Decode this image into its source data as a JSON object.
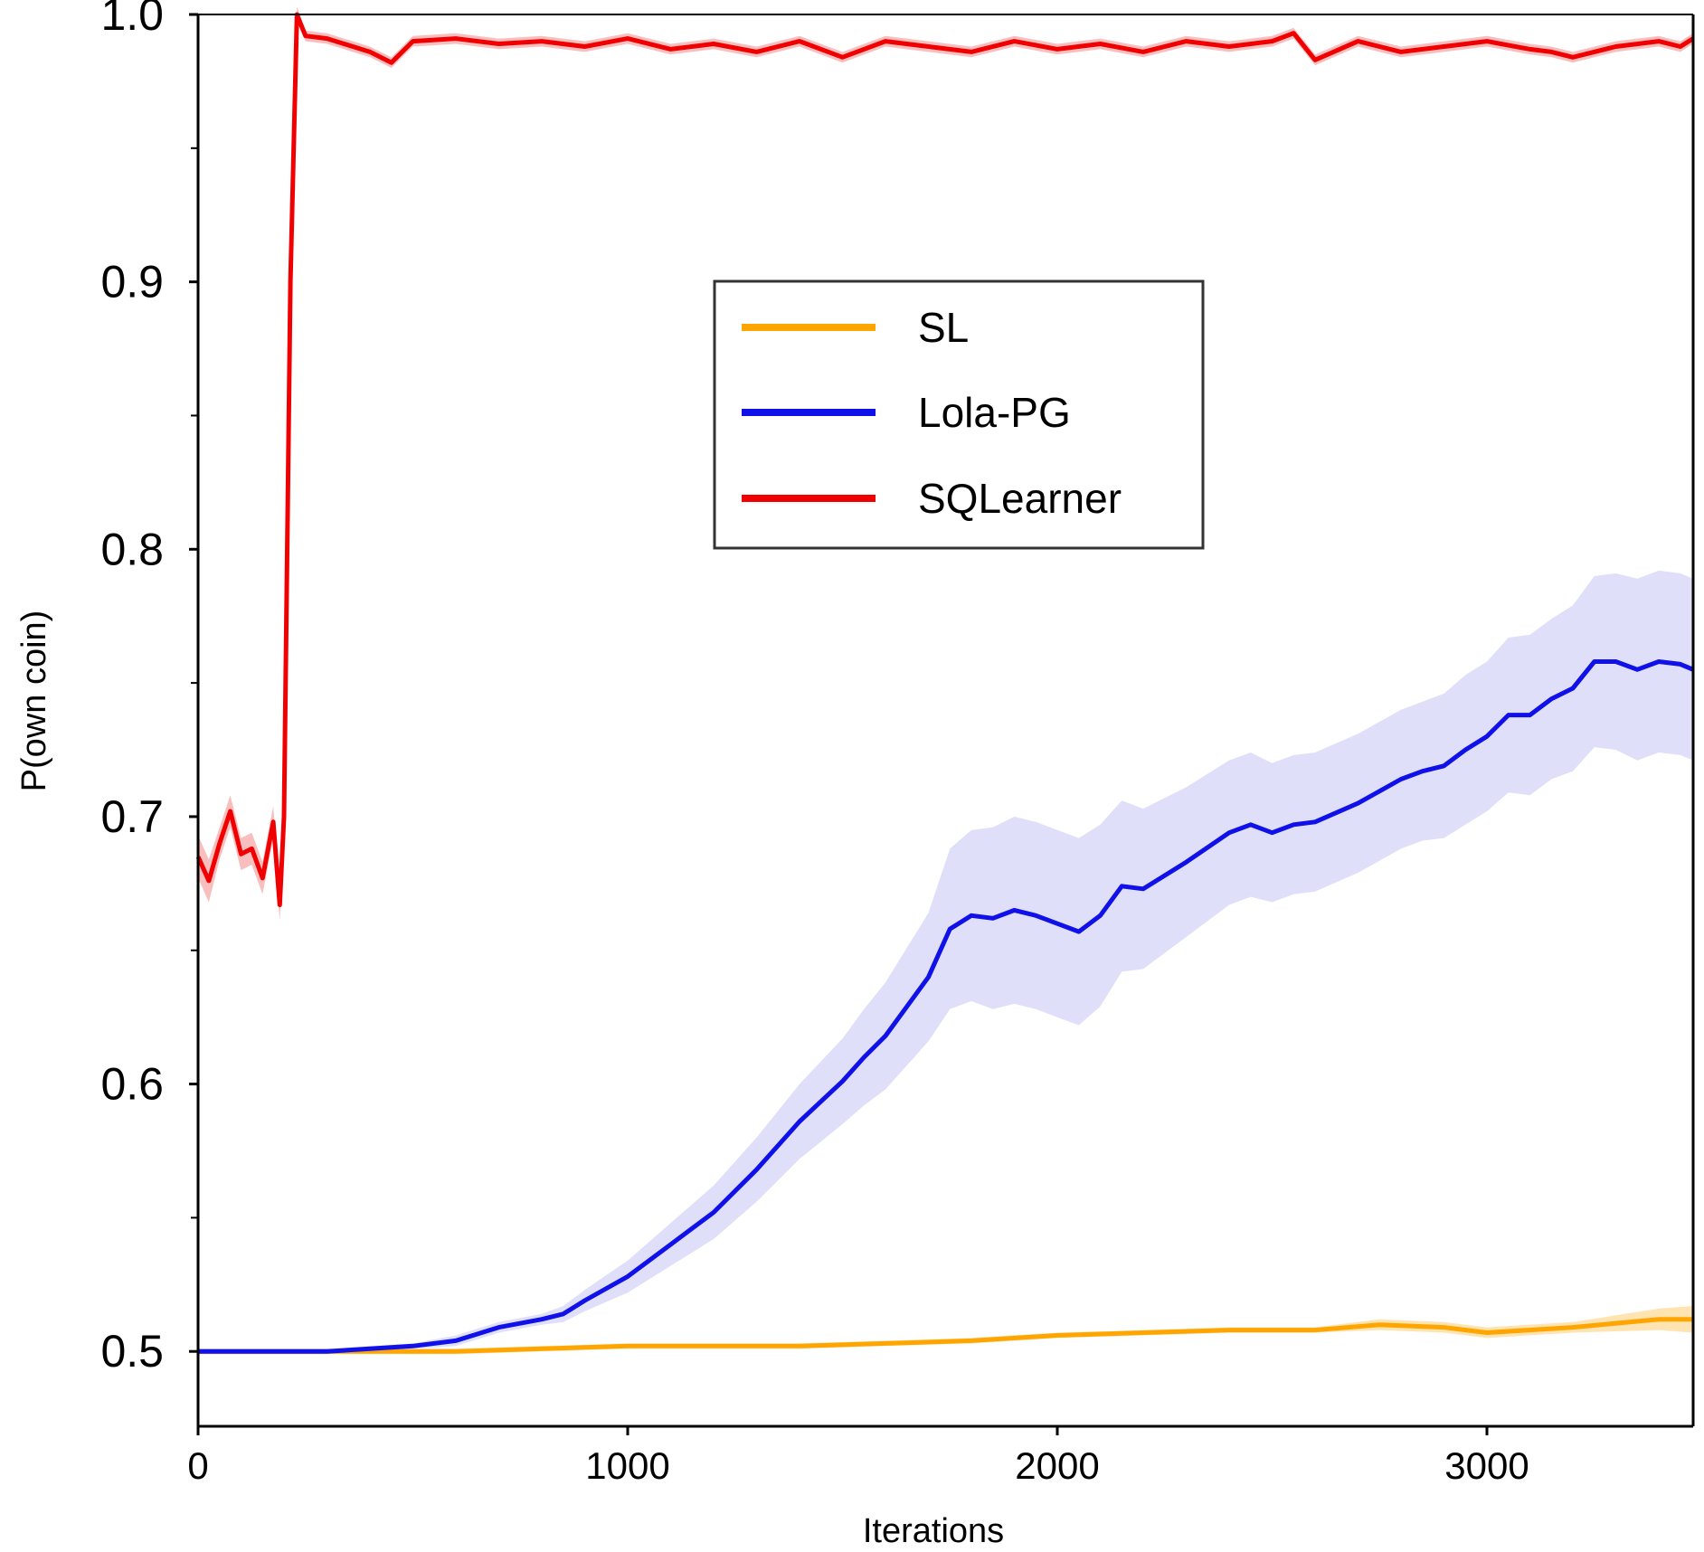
{
  "chart_data": {
    "type": "line",
    "title": "",
    "xlabel": "Iterations",
    "ylabel": "P(own coin)",
    "xlim": [
      0,
      3480
    ],
    "ylim": [
      0.472,
      1.0
    ],
    "x_ticks": [
      0,
      1000,
      2000,
      3000
    ],
    "x_tick_labels": [
      "0",
      "1000",
      "2000",
      "3000"
    ],
    "y_ticks": [
      0.5,
      0.6,
      0.7,
      0.8,
      0.9,
      1.0
    ],
    "y_tick_labels": [
      "0.5",
      "0.6",
      "0.7",
      "0.8",
      "0.9",
      "1.0"
    ],
    "legend_position": "upper-center",
    "grid": false,
    "series": [
      {
        "name": "SL",
        "color": "#FFA500",
        "band_color": "#FFE0A8",
        "x": [
          0,
          200,
          400,
          600,
          800,
          1000,
          1200,
          1400,
          1600,
          1800,
          2000,
          2200,
          2400,
          2600,
          2750,
          2900,
          3000,
          3200,
          3400,
          3480
        ],
        "y": [
          0.5,
          0.5,
          0.5,
          0.5,
          0.501,
          0.502,
          0.502,
          0.502,
          0.503,
          0.504,
          0.506,
          0.507,
          0.508,
          0.508,
          0.51,
          0.509,
          0.507,
          0.509,
          0.512,
          0.512
        ],
        "band": [
          0.001,
          0.001,
          0.001,
          0.001,
          0.001,
          0.001,
          0.001,
          0.001,
          0.001,
          0.001,
          0.001,
          0.001,
          0.001,
          0.001,
          0.002,
          0.002,
          0.002,
          0.002,
          0.004,
          0.005
        ]
      },
      {
        "name": "Lola-PG",
        "color": "#1010E8",
        "band_color": "#DCDCF8",
        "x": [
          0,
          200,
          300,
          400,
          500,
          600,
          700,
          800,
          850,
          900,
          1000,
          1100,
          1200,
          1300,
          1400,
          1500,
          1550,
          1600,
          1700,
          1750,
          1800,
          1850,
          1900,
          1950,
          2000,
          2050,
          2100,
          2150,
          2200,
          2300,
          2400,
          2450,
          2500,
          2550,
          2600,
          2700,
          2800,
          2850,
          2900,
          2950,
          3000,
          3050,
          3100,
          3150,
          3200,
          3250,
          3300,
          3350,
          3400,
          3450,
          3480
        ],
        "y": [
          0.5,
          0.5,
          0.5,
          0.501,
          0.502,
          0.504,
          0.509,
          0.512,
          0.514,
          0.519,
          0.528,
          0.54,
          0.552,
          0.568,
          0.586,
          0.601,
          0.61,
          0.618,
          0.64,
          0.658,
          0.663,
          0.662,
          0.665,
          0.663,
          0.66,
          0.657,
          0.663,
          0.674,
          0.673,
          0.683,
          0.694,
          0.697,
          0.694,
          0.697,
          0.698,
          0.705,
          0.714,
          0.717,
          0.719,
          0.725,
          0.73,
          0.738,
          0.738,
          0.744,
          0.748,
          0.758,
          0.758,
          0.755,
          0.758,
          0.757,
          0.755
        ],
        "band": [
          0.001,
          0.001,
          0.001,
          0.001,
          0.001,
          0.002,
          0.002,
          0.002,
          0.003,
          0.004,
          0.006,
          0.008,
          0.01,
          0.012,
          0.014,
          0.016,
          0.018,
          0.02,
          0.024,
          0.03,
          0.032,
          0.034,
          0.035,
          0.035,
          0.035,
          0.035,
          0.034,
          0.032,
          0.03,
          0.028,
          0.027,
          0.027,
          0.026,
          0.026,
          0.026,
          0.026,
          0.026,
          0.026,
          0.027,
          0.028,
          0.028,
          0.029,
          0.03,
          0.03,
          0.031,
          0.032,
          0.033,
          0.034,
          0.034,
          0.034,
          0.034
        ]
      },
      {
        "name": "SQLearner",
        "color": "#F00000",
        "band_color": "#F8B8B8",
        "x": [
          0,
          25,
          50,
          75,
          100,
          125,
          150,
          175,
          190,
          200,
          215,
          230,
          250,
          300,
          400,
          450,
          500,
          600,
          700,
          800,
          900,
          1000,
          1100,
          1200,
          1300,
          1400,
          1500,
          1600,
          1700,
          1800,
          1900,
          2000,
          2100,
          2200,
          2300,
          2400,
          2500,
          2550,
          2600,
          2700,
          2800,
          2900,
          3000,
          3100,
          3150,
          3200,
          3300,
          3400,
          3450,
          3480
        ],
        "y": [
          0.685,
          0.676,
          0.69,
          0.702,
          0.686,
          0.688,
          0.677,
          0.698,
          0.667,
          0.7,
          0.9,
          1.0,
          0.992,
          0.991,
          0.986,
          0.982,
          0.99,
          0.991,
          0.989,
          0.99,
          0.988,
          0.991,
          0.987,
          0.989,
          0.986,
          0.99,
          0.984,
          0.99,
          0.988,
          0.986,
          0.99,
          0.987,
          0.989,
          0.986,
          0.99,
          0.988,
          0.99,
          0.993,
          0.983,
          0.99,
          0.986,
          0.988,
          0.99,
          0.987,
          0.986,
          0.984,
          0.988,
          0.99,
          0.988,
          0.991
        ],
        "band": [
          0.008,
          0.008,
          0.006,
          0.006,
          0.006,
          0.006,
          0.006,
          0.006,
          0.006,
          0.006,
          0.004,
          0.003,
          0.002,
          0.002,
          0.002,
          0.002,
          0.002,
          0.002,
          0.002,
          0.002,
          0.002,
          0.002,
          0.002,
          0.002,
          0.002,
          0.002,
          0.002,
          0.002,
          0.002,
          0.002,
          0.002,
          0.002,
          0.002,
          0.002,
          0.002,
          0.002,
          0.002,
          0.002,
          0.002,
          0.002,
          0.002,
          0.002,
          0.002,
          0.002,
          0.002,
          0.002,
          0.002,
          0.002,
          0.002,
          0.002
        ]
      }
    ]
  }
}
